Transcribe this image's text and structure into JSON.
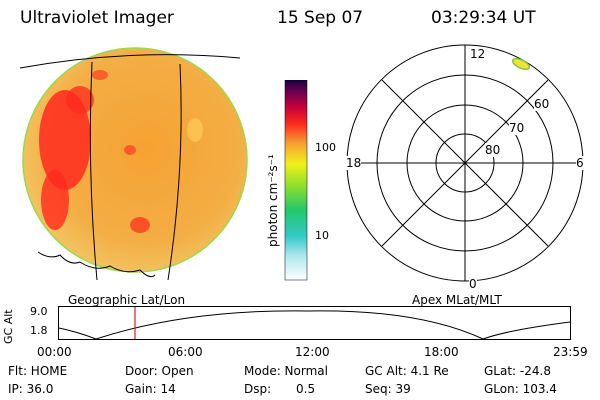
{
  "header": {
    "instrument": "Ultraviolet Imager",
    "date": "15 Sep 07",
    "time": "03:29:34 UT"
  },
  "left_panel": {
    "caption": "Geographic Lat/Lon"
  },
  "colorbar": {
    "unit_label": "photon cm⁻²s⁻¹",
    "tick_labels": [
      "100",
      "10"
    ]
  },
  "right_panel": {
    "caption": "Apex MLat/MLT",
    "mlt_labels": {
      "top": "12",
      "bottom": "0",
      "left": "18",
      "right": "6"
    },
    "lat_labels": [
      "60",
      "70",
      "80"
    ]
  },
  "altitude_plot": {
    "axis_label": "GC Alt",
    "y_ticks": [
      "9.0",
      "1.8"
    ],
    "x_ticks": [
      "00:00",
      "06:00",
      "12:00",
      "18:00",
      "23:59"
    ]
  },
  "info": {
    "flt": "Flt: HOME",
    "ip": "IP: 36.0",
    "door": "Door: Open",
    "gain": "Gain: 14",
    "mode": "Mode: Normal",
    "dsp_label": "Dsp:",
    "dsp_value": "0.5",
    "gc_alt": "GC Alt: 4.1 Re",
    "seq": "Seq: 39",
    "glat": "GLat: -24.8",
    "glon": "GLon: 103.4"
  },
  "colors": {
    "earth_fill": "#f5a73a",
    "bright_spots": "#ff2020",
    "limb": "#9ad94a",
    "marker_line": "#d42020"
  }
}
